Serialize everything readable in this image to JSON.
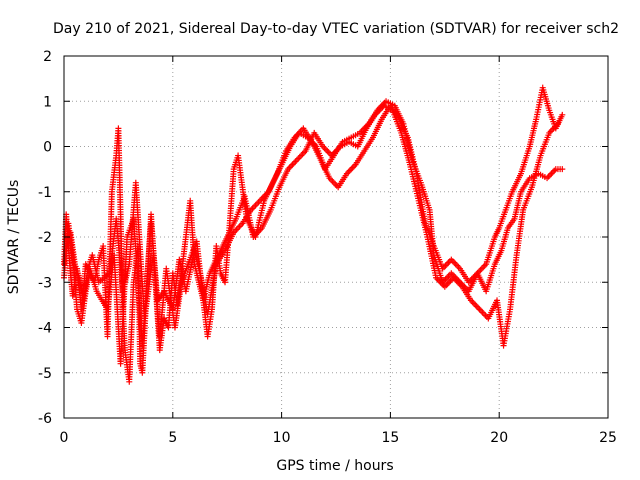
{
  "chart_data": {
    "type": "scatter",
    "title": "Day 210 of 2021, Sidereal Day-to-day VTEC variation (SDTVAR) for receiver sch2",
    "xlabel": "GPS time / hours",
    "ylabel": "SDTVAR / TECUs",
    "xlim": [
      0,
      25
    ],
    "ylim": [
      -6,
      2
    ],
    "xticks": [
      0,
      5,
      10,
      15,
      20,
      25
    ],
    "yticks": [
      -6,
      -5,
      -4,
      -3,
      -2,
      -1,
      0,
      1,
      2
    ],
    "grid": true,
    "marker": "+",
    "series": [
      {
        "name": "SDTVAR",
        "color": "#ff0000",
        "x": [
          0.0,
          0.1,
          0.2,
          0.3,
          0.4,
          0.5,
          0.6,
          0.8,
          1.0,
          1.2,
          1.4,
          1.6,
          1.8,
          2.0,
          2.2,
          2.4,
          2.5,
          2.6,
          2.7,
          2.8,
          3.0,
          3.2,
          3.4,
          3.5,
          3.6,
          3.8,
          4.0,
          4.2,
          4.4,
          4.6,
          4.8,
          5.0,
          5.2,
          5.4,
          5.6,
          5.8,
          6.0,
          6.2,
          6.4,
          6.6,
          6.8,
          7.0,
          7.2,
          7.4,
          7.6,
          7.8,
          8.0,
          8.4,
          8.8,
          9.2,
          9.6,
          10.0,
          10.4,
          10.8,
          11.2,
          11.6,
          12.0,
          12.4,
          12.8,
          13.2,
          13.6,
          14.0,
          14.4,
          14.8,
          15.2,
          15.6,
          16.0,
          16.4,
          16.8,
          17.0,
          17.4,
          17.8,
          18.2,
          18.6,
          19.0,
          19.4,
          19.8,
          20.0,
          20.3,
          20.6,
          21.0,
          21.4,
          21.7,
          22.0,
          22.3,
          22.6,
          22.9
        ],
        "y": [
          -2.6,
          -1.5,
          -2.2,
          -2.8,
          -3.3,
          -3.0,
          -2.7,
          -3.6,
          -2.6,
          -2.8,
          -3.0,
          -2.5,
          -2.2,
          -4.2,
          -1.0,
          -0.2,
          0.4,
          -1.5,
          -3.5,
          -4.5,
          -5.2,
          -3.0,
          -2.2,
          -4.8,
          -5.0,
          -3.2,
          -1.5,
          -3.0,
          -4.5,
          -3.8,
          -4.0,
          -2.8,
          -3.5,
          -2.8,
          -2.0,
          -1.2,
          -2.6,
          -3.0,
          -3.4,
          -4.2,
          -3.6,
          -2.2,
          -2.8,
          -3.0,
          -1.8,
          -0.5,
          -0.2,
          -1.6,
          -2.0,
          -1.2,
          -0.8,
          -0.4,
          0.0,
          0.3,
          0.2,
          0.0,
          -0.5,
          -0.2,
          0.1,
          0.2,
          0.3,
          0.5,
          0.8,
          1.0,
          0.9,
          0.5,
          -0.3,
          -0.8,
          -1.4,
          -2.4,
          -3.0,
          -2.8,
          -3.0,
          -3.2,
          -2.8,
          -2.6,
          -2.0,
          -1.8,
          -1.4,
          -1.0,
          -0.6,
          0.0,
          0.6,
          1.3,
          0.8,
          0.4,
          0.7
        ]
      },
      {
        "name": "SDTVAR",
        "color": "#ff0000",
        "x": [
          0.0,
          0.2,
          0.4,
          0.6,
          0.8,
          1.0,
          1.2,
          1.5,
          2.0,
          2.3,
          2.6,
          2.9,
          3.2,
          3.6,
          4.0,
          4.3,
          4.6,
          5.0,
          5.3,
          5.6,
          6.0,
          6.3,
          6.6,
          7.0,
          7.4,
          7.8,
          8.2,
          8.6,
          9.0,
          9.4,
          9.8,
          10.2,
          10.6,
          11.0,
          11.4,
          11.8,
          12.2,
          12.6,
          13.0,
          13.4,
          13.8,
          14.2,
          14.6,
          15.0,
          15.4,
          15.8,
          16.2,
          16.6,
          17.0,
          17.4,
          17.8,
          18.2,
          18.6,
          19.0,
          19.4,
          19.8,
          20.1,
          20.4,
          20.7,
          21.0,
          21.4,
          21.8,
          22.2,
          22.6,
          22.9
        ],
        "y": [
          -2.9,
          -1.7,
          -2.4,
          -3.6,
          -3.9,
          -3.2,
          -2.7,
          -3.2,
          -3.6,
          -2.4,
          -4.8,
          -2.0,
          -1.6,
          -4.4,
          -1.7,
          -3.4,
          -3.2,
          -3.6,
          -2.5,
          -3.2,
          -2.3,
          -2.9,
          -3.7,
          -2.6,
          -2.3,
          -1.9,
          -1.7,
          -1.4,
          -1.2,
          -1.0,
          -0.6,
          -0.1,
          0.2,
          0.4,
          0.1,
          -0.3,
          -0.7,
          -0.9,
          -0.6,
          -0.4,
          -0.1,
          0.2,
          0.6,
          0.9,
          0.6,
          0.2,
          -0.6,
          -1.7,
          -2.2,
          -2.7,
          -2.5,
          -2.7,
          -3.0,
          -2.8,
          -3.2,
          -2.6,
          -2.3,
          -1.8,
          -1.6,
          -1.0,
          -0.7,
          -0.6,
          -0.7,
          -0.5,
          -0.5
        ]
      },
      {
        "name": "SDTVAR",
        "color": "#ff0000",
        "x": [
          0.1,
          0.3,
          0.5,
          0.7,
          0.9,
          1.1,
          1.3,
          1.6,
          2.1,
          2.4,
          2.7,
          3.0,
          3.3,
          3.7,
          4.1,
          4.4,
          4.7,
          5.1,
          5.4,
          5.7,
          6.1,
          6.4,
          6.7,
          7.1,
          7.5,
          7.9,
          8.3,
          8.7,
          9.1,
          9.5,
          9.9,
          10.3,
          10.7,
          11.1,
          11.5,
          11.9,
          12.3,
          12.7,
          13.1,
          13.5,
          13.9,
          14.3,
          14.7,
          15.1,
          15.5,
          15.9,
          16.3,
          16.7,
          17.1,
          17.5,
          17.9,
          18.3,
          18.7,
          19.1,
          19.5,
          19.9,
          20.2,
          20.5,
          20.8,
          21.1,
          21.5,
          21.9,
          22.3,
          22.7
        ],
        "y": [
          -2.3,
          -1.9,
          -2.6,
          -2.9,
          -3.4,
          -2.7,
          -2.4,
          -3.0,
          -2.8,
          -1.6,
          -3.2,
          -2.6,
          -0.8,
          -3.8,
          -2.4,
          -4.2,
          -2.7,
          -4.0,
          -3.0,
          -2.6,
          -2.1,
          -3.4,
          -2.8,
          -2.4,
          -2.0,
          -1.6,
          -1.1,
          -2.0,
          -1.8,
          -1.4,
          -0.9,
          -0.5,
          -0.3,
          -0.1,
          0.3,
          0.0,
          -0.2,
          0.0,
          0.1,
          0.0,
          0.4,
          0.7,
          0.9,
          0.8,
          0.3,
          -0.4,
          -1.2,
          -2.0,
          -2.9,
          -3.1,
          -2.9,
          -3.1,
          -3.4,
          -3.6,
          -3.8,
          -3.4,
          -4.4,
          -3.6,
          -2.4,
          -1.4,
          -0.9,
          -0.2,
          0.3,
          0.5
        ]
      }
    ]
  }
}
